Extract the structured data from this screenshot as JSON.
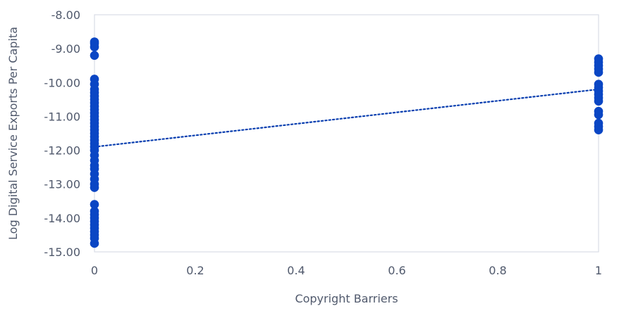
{
  "colors": {
    "points": "#0a46c4",
    "trendline": "#0a3fb0",
    "frame": "#d9dde6",
    "text": "#50596c"
  },
  "chart_data": {
    "type": "scatter",
    "title": "",
    "xlabel": "Copyright Barriers",
    "ylabel": "Log Digital Service Exports Per Capita",
    "xlim": [
      0,
      1
    ],
    "ylim": [
      -15,
      -8
    ],
    "x_ticks": [
      "0",
      "0.2",
      "0.4",
      "0.6",
      "0.8",
      "1"
    ],
    "y_ticks": [
      "-8.00",
      "-9.00",
      "-10.00",
      "-11.00",
      "-12.00",
      "-13.00",
      "-14.00",
      "-15.00"
    ],
    "grid": false,
    "legend": "none",
    "series": [
      {
        "marker": "circle",
        "points": [
          [
            0,
            -8.8
          ],
          [
            0,
            -8.85
          ],
          [
            0,
            -8.95
          ],
          [
            0,
            -9.2
          ],
          [
            0,
            -9.9
          ],
          [
            0,
            -10.05
          ],
          [
            0,
            -10.2
          ],
          [
            0,
            -10.3
          ],
          [
            0,
            -10.4
          ],
          [
            0,
            -10.5
          ],
          [
            0,
            -10.6
          ],
          [
            0,
            -10.7
          ],
          [
            0,
            -10.8
          ],
          [
            0,
            -10.9
          ],
          [
            0,
            -11.0
          ],
          [
            0,
            -11.1
          ],
          [
            0,
            -11.2
          ],
          [
            0,
            -11.3
          ],
          [
            0,
            -11.4
          ],
          [
            0,
            -11.5
          ],
          [
            0,
            -11.6
          ],
          [
            0,
            -11.7
          ],
          [
            0,
            -11.8
          ],
          [
            0,
            -11.9
          ],
          [
            0,
            -12.0
          ],
          [
            0,
            -12.15
          ],
          [
            0,
            -12.3
          ],
          [
            0,
            -12.45
          ],
          [
            0,
            -12.55
          ],
          [
            0,
            -12.7
          ],
          [
            0,
            -12.85
          ],
          [
            0,
            -13.0
          ],
          [
            0,
            -13.1
          ],
          [
            0,
            -13.6
          ],
          [
            0,
            -13.8
          ],
          [
            0,
            -13.9
          ],
          [
            0,
            -14.0
          ],
          [
            0,
            -14.1
          ],
          [
            0,
            -14.2
          ],
          [
            0,
            -14.3
          ],
          [
            0,
            -14.4
          ],
          [
            0,
            -14.5
          ],
          [
            0,
            -14.6
          ],
          [
            0,
            -14.75
          ],
          [
            1,
            -9.3
          ],
          [
            1,
            -9.4
          ],
          [
            1,
            -9.5
          ],
          [
            1,
            -9.6
          ],
          [
            1,
            -9.7
          ],
          [
            1,
            -10.05
          ],
          [
            1,
            -10.15
          ],
          [
            1,
            -10.25
          ],
          [
            1,
            -10.35
          ],
          [
            1,
            -10.45
          ],
          [
            1,
            -10.55
          ],
          [
            1,
            -10.85
          ],
          [
            1,
            -10.95
          ],
          [
            1,
            -11.2
          ],
          [
            1,
            -11.3
          ],
          [
            1,
            -11.4
          ]
        ]
      }
    ],
    "trendline": {
      "style": "dotted",
      "from": [
        0,
        -11.9
      ],
      "to": [
        1,
        -10.2
      ]
    }
  }
}
